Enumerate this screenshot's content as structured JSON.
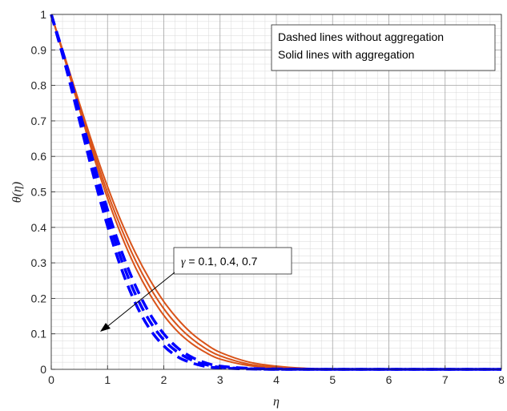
{
  "chart_data": {
    "type": "line",
    "xlabel": "η",
    "ylabel": "θ(η)",
    "xlim": [
      0,
      8
    ],
    "ylim": [
      0,
      1
    ],
    "x_ticks": [
      "0",
      "1",
      "2",
      "3",
      "4",
      "5",
      "6",
      "7",
      "8"
    ],
    "y_ticks": [
      "0",
      "0.1",
      "0.2",
      "0.3",
      "0.4",
      "0.5",
      "0.6",
      "0.7",
      "0.8",
      "0.9",
      "1"
    ],
    "grid": true,
    "minor_grid": true,
    "legend_box": {
      "line1": "Dashed lines without aggregation",
      "line2": "Solid lines with aggregation",
      "placement": "top-right"
    },
    "annotation": {
      "symbol": "γ",
      "rest": " = 0.1, 0.4, 0.7"
    },
    "colors": {
      "dashed": "#0000ff",
      "solid": "#d95319"
    },
    "series": [
      {
        "style": "dashed",
        "x": [
          0,
          0.25,
          0.5,
          0.75,
          1.0,
          1.25,
          1.5,
          1.75,
          2.0,
          2.25,
          2.5,
          2.75,
          3.0,
          3.5,
          4.0,
          5.0,
          8.0
        ],
        "y": [
          1.0,
          0.857,
          0.702,
          0.546,
          0.404,
          0.282,
          0.185,
          0.114,
          0.066,
          0.035,
          0.018,
          0.008,
          0.004,
          0.001,
          0.0,
          0.0,
          0.0
        ]
      },
      {
        "style": "dashed",
        "x": [
          0,
          0.25,
          0.5,
          0.75,
          1.0,
          1.25,
          1.5,
          1.75,
          2.0,
          2.25,
          2.5,
          2.75,
          3.0,
          3.5,
          4.0,
          5.0,
          8.0
        ],
        "y": [
          1.0,
          0.864,
          0.716,
          0.566,
          0.428,
          0.308,
          0.21,
          0.136,
          0.083,
          0.048,
          0.026,
          0.013,
          0.006,
          0.002,
          0.0,
          0.0,
          0.0
        ]
      },
      {
        "style": "dashed",
        "x": [
          0,
          0.25,
          0.5,
          0.75,
          1.0,
          1.25,
          1.5,
          1.75,
          2.0,
          2.25,
          2.5,
          2.75,
          3.0,
          3.5,
          4.0,
          5.0,
          8.0
        ],
        "y": [
          1.0,
          0.87,
          0.728,
          0.584,
          0.45,
          0.332,
          0.234,
          0.157,
          0.1,
          0.06,
          0.034,
          0.018,
          0.009,
          0.003,
          0.001,
          0.0,
          0.0
        ]
      },
      {
        "style": "solid",
        "x": [
          0,
          0.25,
          0.5,
          0.75,
          1.0,
          1.25,
          1.5,
          1.75,
          2.0,
          2.25,
          2.5,
          2.75,
          3.0,
          3.5,
          4.0,
          4.5,
          5.0,
          6.0,
          8.0
        ],
        "y": [
          1.0,
          0.868,
          0.733,
          0.602,
          0.482,
          0.376,
          0.286,
          0.212,
          0.152,
          0.106,
          0.072,
          0.047,
          0.029,
          0.011,
          0.004,
          0.001,
          0.0,
          0.0,
          0.0
        ]
      },
      {
        "style": "solid",
        "x": [
          0,
          0.25,
          0.5,
          0.75,
          1.0,
          1.25,
          1.5,
          1.75,
          2.0,
          2.25,
          2.5,
          2.75,
          3.0,
          3.5,
          4.0,
          4.5,
          5.0,
          6.0,
          8.0
        ],
        "y": [
          1.0,
          0.872,
          0.741,
          0.615,
          0.498,
          0.395,
          0.306,
          0.232,
          0.171,
          0.123,
          0.086,
          0.058,
          0.038,
          0.015,
          0.006,
          0.002,
          0.001,
          0.0,
          0.0
        ]
      },
      {
        "style": "solid",
        "x": [
          0,
          0.25,
          0.5,
          0.75,
          1.0,
          1.25,
          1.5,
          1.75,
          2.0,
          2.25,
          2.5,
          2.75,
          3.0,
          3.5,
          4.0,
          4.5,
          5.0,
          6.0,
          8.0
        ],
        "y": [
          1.0,
          0.876,
          0.75,
          0.628,
          0.515,
          0.414,
          0.327,
          0.253,
          0.191,
          0.141,
          0.101,
          0.071,
          0.048,
          0.021,
          0.009,
          0.003,
          0.001,
          0.0,
          0.0
        ]
      }
    ]
  }
}
